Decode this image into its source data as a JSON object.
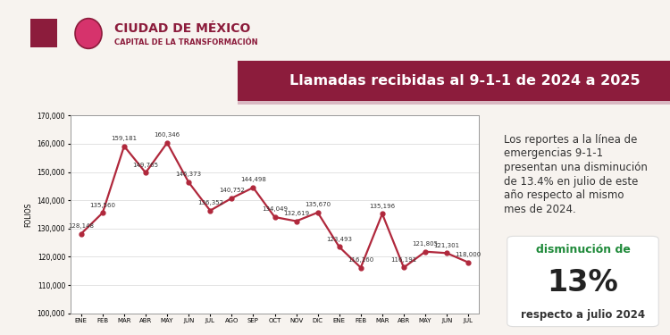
{
  "chart_data": {
    "type": "line",
    "title": "Llamadas recibidas al 9-1-1 de 2024 a 2025",
    "y_label": "FOLIOS",
    "categories": [
      "ENE",
      "FEB",
      "MAR",
      "ABR",
      "MAY",
      "JUN",
      "JUL",
      "AGO",
      "SEP",
      "OCT",
      "NOV",
      "DIC",
      "ENE",
      "FEB",
      "MAR",
      "ABR",
      "MAY",
      "JUN",
      "JUL"
    ],
    "values": [
      128148,
      135560,
      159181,
      149765,
      160346,
      146373,
      136352,
      140752,
      144498,
      134049,
      132619,
      135670,
      123493,
      116160,
      135196,
      116191,
      121805,
      121301,
      118000
    ],
    "value_labels": [
      "128,148",
      "135,560",
      "159,181",
      "149,765",
      "160,346",
      "146,373",
      "136,352",
      "140,752",
      "144,498",
      "134,049",
      "132,619",
      "135,670",
      "123,493",
      "116,160",
      "135,196",
      "116,191",
      "121,805",
      "121,301",
      "118,000"
    ],
    "data_labels": true,
    "color": "#b0283c",
    "marker": "o",
    "line_style": "solid",
    "ylim": [
      100000,
      170000
    ],
    "yticks": [
      {
        "value": 100000,
        "label": "100,000"
      },
      {
        "value": 110000,
        "label": "110,000"
      },
      {
        "value": 120000,
        "label": "120,000"
      },
      {
        "value": 130000,
        "label": "130,000"
      },
      {
        "value": 140000,
        "label": "140,000"
      },
      {
        "value": 150000,
        "label": "150,000"
      },
      {
        "value": 160000,
        "label": "160,000"
      },
      {
        "value": 170000,
        "label": "170,000"
      }
    ],
    "grid": true
  },
  "header": {
    "name": "CIUDAD DE MÉXICO",
    "tagline": "CAPITAL DE LA TRANSFORMACIÓN"
  },
  "summary": {
    "text": "Los reportes a la línea de\nemergencias 9-1-1\npresentan una disminución\nde 13.4% en julio de este\naño respecto al mismo\nmes de 2024.",
    "box": {
      "top": "disminución de",
      "value": "13%",
      "bottom": "respecto a julio 2024"
    }
  }
}
